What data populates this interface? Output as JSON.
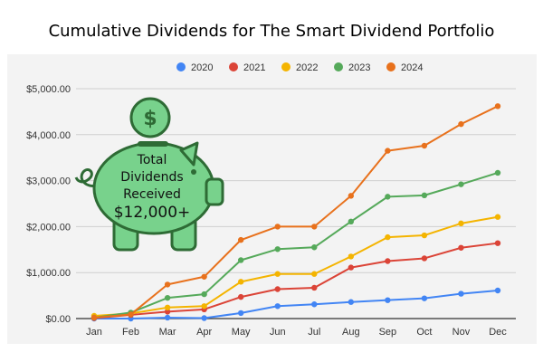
{
  "chart_data": {
    "type": "line",
    "title": "Cumulative Dividends for The Smart Dividend Portfolio",
    "xlabel": "",
    "ylabel": "",
    "categories": [
      "Jan",
      "Feb",
      "Mar",
      "Apr",
      "May",
      "Jun",
      "Jul",
      "Aug",
      "Sep",
      "Oct",
      "Nov",
      "Dec"
    ],
    "ylim": [
      0,
      5000
    ],
    "yticks": [
      "$0.00",
      "$1,000.00",
      "$2,000.00",
      "$3,000.00",
      "$4,000.00",
      "$5,000.00"
    ],
    "grid": true,
    "legend": "top",
    "series": [
      {
        "name": "2020",
        "color": "#4285f4",
        "values": [
          0,
          0,
          20,
          10,
          120,
          270,
          310,
          360,
          400,
          440,
          540,
          610
        ]
      },
      {
        "name": "2021",
        "color": "#db4437",
        "values": [
          10,
          80,
          150,
          200,
          470,
          640,
          670,
          1110,
          1250,
          1310,
          1540,
          1640
        ]
      },
      {
        "name": "2022",
        "color": "#f4b400",
        "values": [
          60,
          110,
          240,
          270,
          800,
          970,
          970,
          1350,
          1770,
          1810,
          2070,
          2210
        ]
      },
      {
        "name": "2023",
        "color": "#55a95a",
        "values": [
          20,
          130,
          450,
          530,
          1270,
          1510,
          1550,
          2110,
          2650,
          2680,
          2920,
          3170
        ]
      },
      {
        "name": "2024",
        "color": "#e8711c",
        "values": [
          20,
          90,
          740,
          910,
          1710,
          2000,
          2000,
          2670,
          3650,
          3760,
          4230,
          4620
        ]
      }
    ],
    "annotation": {
      "lines": [
        "Total",
        "Dividends",
        "Received",
        "$12,000+"
      ],
      "icon": "piggy-bank-icon",
      "coin_icon": "dollar-coin-icon",
      "fill": "#78d28c",
      "stroke": "#2e6b35",
      "coin_symbol": "$"
    }
  }
}
